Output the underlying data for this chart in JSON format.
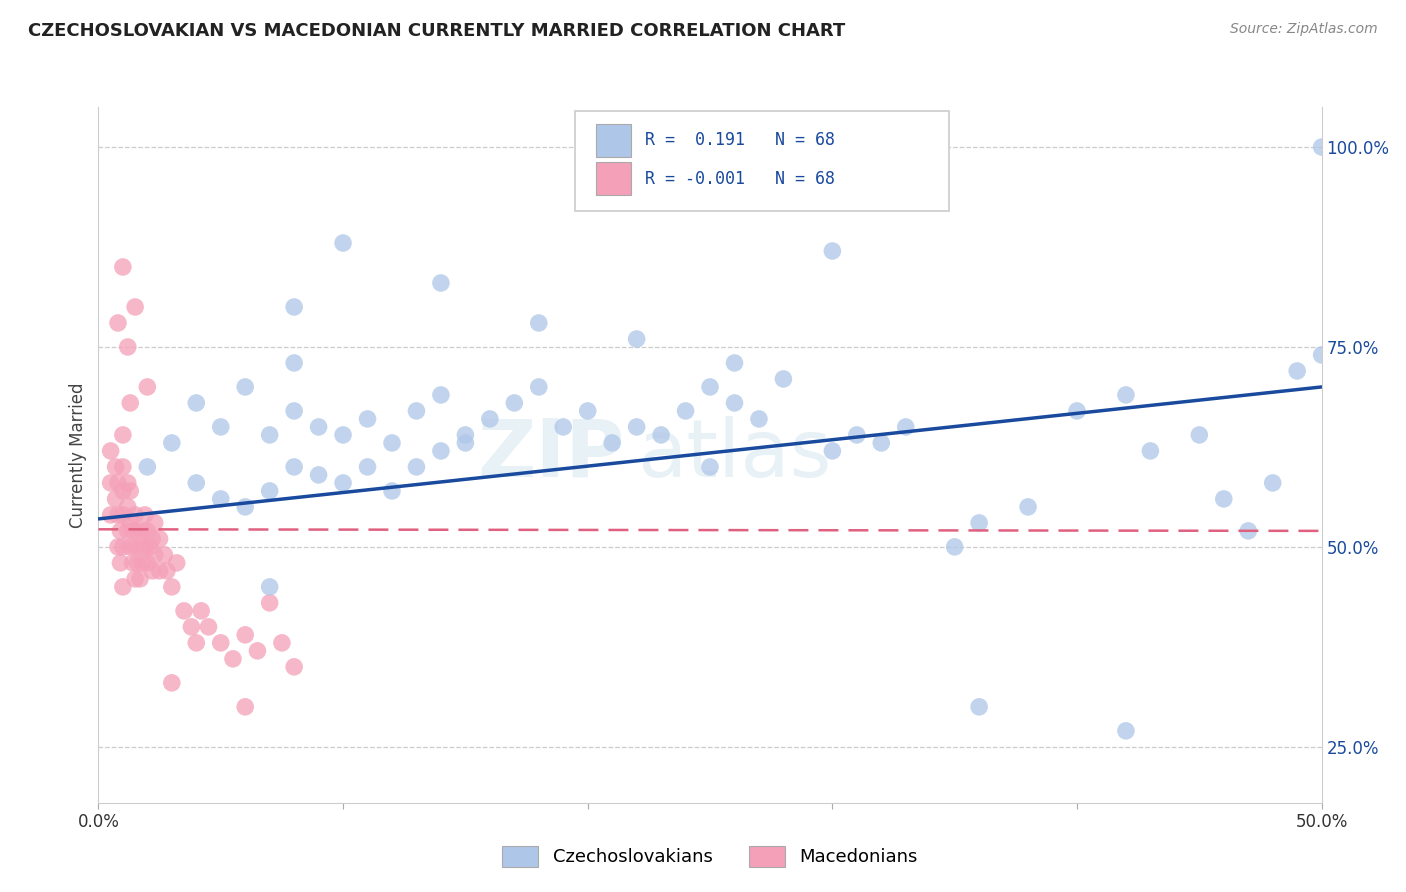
{
  "title": "CZECHOSLOVAKIAN VS MACEDONIAN CURRENTLY MARRIED CORRELATION CHART",
  "source_text": "Source: ZipAtlas.com",
  "ylabel": "Currently Married",
  "xlim": [
    0.0,
    0.5
  ],
  "ylim": [
    0.18,
    1.05
  ],
  "x_tick_labels": [
    "0.0%",
    "",
    "",
    "",
    "",
    "50.0%"
  ],
  "y_ticks_right": [
    0.25,
    0.5,
    0.75,
    1.0
  ],
  "y_tick_labels_right": [
    "25.0%",
    "50.0%",
    "75.0%",
    "100.0%"
  ],
  "legend_label1": "Czechoslovakians",
  "legend_label2": "Macedonians",
  "blue_color": "#aec6e8",
  "pink_color": "#f4a0b8",
  "blue_line_color": "#1a4a9e",
  "pink_line_color": "#e06080",
  "watermark_zip": "ZIP",
  "watermark_atlas": "atlas",
  "blue_x": [
    0.02,
    0.03,
    0.04,
    0.04,
    0.05,
    0.05,
    0.06,
    0.06,
    0.07,
    0.07,
    0.08,
    0.08,
    0.08,
    0.09,
    0.09,
    0.1,
    0.1,
    0.11,
    0.11,
    0.12,
    0.12,
    0.13,
    0.13,
    0.14,
    0.14,
    0.15,
    0.16,
    0.17,
    0.18,
    0.19,
    0.2,
    0.21,
    0.22,
    0.23,
    0.24,
    0.25,
    0.26,
    0.27,
    0.28,
    0.3,
    0.31,
    0.32,
    0.33,
    0.35,
    0.36,
    0.38,
    0.4,
    0.42,
    0.43,
    0.45,
    0.46,
    0.47,
    0.48,
    0.49,
    0.5,
    0.08,
    0.1,
    0.14,
    0.18,
    0.22,
    0.26,
    0.3,
    0.36,
    0.42,
    0.5,
    0.07,
    0.15,
    0.25
  ],
  "blue_y": [
    0.6,
    0.63,
    0.58,
    0.68,
    0.56,
    0.65,
    0.55,
    0.7,
    0.57,
    0.64,
    0.6,
    0.67,
    0.73,
    0.59,
    0.65,
    0.58,
    0.64,
    0.6,
    0.66,
    0.57,
    0.63,
    0.6,
    0.67,
    0.62,
    0.69,
    0.64,
    0.66,
    0.68,
    0.7,
    0.65,
    0.67,
    0.63,
    0.65,
    0.64,
    0.67,
    0.7,
    0.68,
    0.66,
    0.71,
    0.62,
    0.64,
    0.63,
    0.65,
    0.5,
    0.53,
    0.55,
    0.67,
    0.69,
    0.62,
    0.64,
    0.56,
    0.52,
    0.58,
    0.72,
    0.74,
    0.8,
    0.88,
    0.83,
    0.78,
    0.76,
    0.73,
    0.87,
    0.3,
    0.27,
    1.0,
    0.45,
    0.63,
    0.6
  ],
  "pink_x": [
    0.005,
    0.005,
    0.005,
    0.007,
    0.007,
    0.008,
    0.008,
    0.008,
    0.009,
    0.009,
    0.01,
    0.01,
    0.01,
    0.01,
    0.01,
    0.01,
    0.012,
    0.012,
    0.012,
    0.013,
    0.013,
    0.013,
    0.014,
    0.014,
    0.015,
    0.015,
    0.015,
    0.016,
    0.016,
    0.017,
    0.017,
    0.018,
    0.018,
    0.019,
    0.019,
    0.02,
    0.02,
    0.021,
    0.022,
    0.022,
    0.023,
    0.023,
    0.025,
    0.025,
    0.027,
    0.028,
    0.03,
    0.032,
    0.035,
    0.038,
    0.04,
    0.042,
    0.045,
    0.05,
    0.055,
    0.06,
    0.065,
    0.07,
    0.075,
    0.08,
    0.012,
    0.015,
    0.01,
    0.008,
    0.013,
    0.02,
    0.03,
    0.06
  ],
  "pink_y": [
    0.54,
    0.58,
    0.62,
    0.56,
    0.6,
    0.5,
    0.54,
    0.58,
    0.48,
    0.52,
    0.45,
    0.5,
    0.54,
    0.57,
    0.6,
    0.64,
    0.52,
    0.55,
    0.58,
    0.5,
    0.53,
    0.57,
    0.48,
    0.52,
    0.46,
    0.5,
    0.54,
    0.48,
    0.52,
    0.46,
    0.5,
    0.48,
    0.52,
    0.5,
    0.54,
    0.48,
    0.52,
    0.5,
    0.47,
    0.51,
    0.49,
    0.53,
    0.47,
    0.51,
    0.49,
    0.47,
    0.45,
    0.48,
    0.42,
    0.4,
    0.38,
    0.42,
    0.4,
    0.38,
    0.36,
    0.39,
    0.37,
    0.43,
    0.38,
    0.35,
    0.75,
    0.8,
    0.85,
    0.78,
    0.68,
    0.7,
    0.33,
    0.3
  ]
}
